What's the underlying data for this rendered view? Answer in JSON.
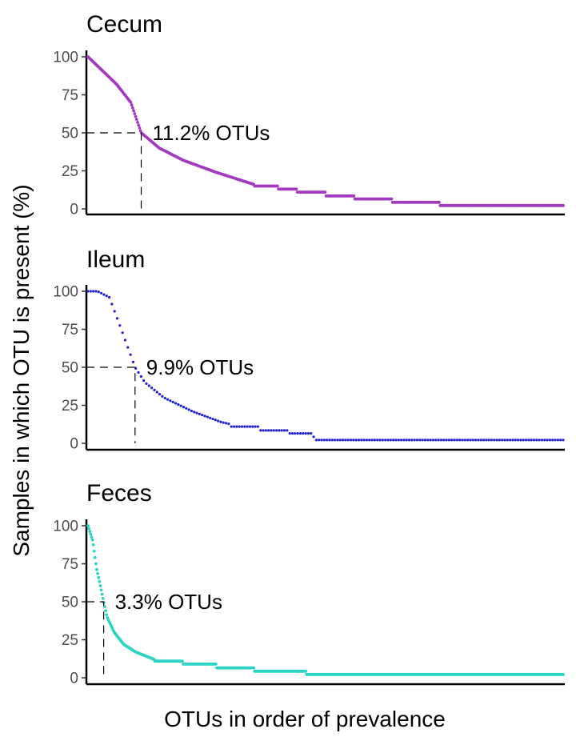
{
  "chart_data": {
    "type": "scatter",
    "ylabel": "Samples in which OTU is present (%)",
    "xlabel": "OTUs in order of prevalence",
    "ylim": [
      0,
      100
    ],
    "y_ticks": [
      0,
      25,
      50,
      75,
      100
    ],
    "panels": [
      {
        "name": "Cecum",
        "color": "#a23ac0",
        "annotation": "11.2% OTUs",
        "threshold": 50,
        "threshold_fraction": 0.112,
        "curve": [
          [
            0,
            100
          ],
          [
            0.03,
            91
          ],
          [
            0.06,
            82
          ],
          [
            0.09,
            70
          ],
          [
            0.112,
            50
          ],
          [
            0.15,
            40
          ],
          [
            0.2,
            32
          ],
          [
            0.27,
            24
          ],
          [
            0.35,
            16
          ],
          [
            0.42,
            11
          ],
          [
            0.5,
            7
          ],
          [
            0.62,
            4
          ],
          [
            0.8,
            2.2
          ],
          [
            1.0,
            2
          ]
        ],
        "levels": [
          [
            0.35,
            15
          ],
          [
            0.4,
            13
          ],
          [
            0.44,
            11
          ],
          [
            0.5,
            8.5
          ],
          [
            0.56,
            6.5
          ],
          [
            0.64,
            4.3
          ],
          [
            0.74,
            2.2
          ],
          [
            1.0,
            2.2
          ]
        ],
        "n_points": 480
      },
      {
        "name": "Ileum",
        "color": "#2222cc",
        "annotation": "9.9% OTUs",
        "threshold": 50,
        "threshold_fraction": 0.099,
        "curve": [
          [
            0,
            100
          ],
          [
            0.02,
            100
          ],
          [
            0.045,
            96
          ],
          [
            0.07,
            75
          ],
          [
            0.099,
            50
          ],
          [
            0.12,
            40
          ],
          [
            0.16,
            30
          ],
          [
            0.22,
            21
          ],
          [
            0.28,
            14
          ],
          [
            0.35,
            9
          ],
          [
            0.42,
            6.5
          ],
          [
            0.48,
            4.3
          ],
          [
            0.5,
            2.2
          ],
          [
            1.0,
            2.2
          ]
        ],
        "levels": [
          [
            0.3,
            11
          ],
          [
            0.36,
            8.5
          ],
          [
            0.42,
            6.5
          ],
          [
            0.47,
            4.3
          ],
          [
            0.48,
            2.2
          ],
          [
            1.0,
            2.2
          ]
        ],
        "n_points": 180
      },
      {
        "name": "Feces",
        "color": "#2dd4c4",
        "annotation": "3.3% OTUs",
        "threshold": 50,
        "threshold_fraction": 0.033,
        "curve": [
          [
            0,
            100
          ],
          [
            0.01,
            90
          ],
          [
            0.018,
            72
          ],
          [
            0.025,
            62
          ],
          [
            0.033,
            50
          ],
          [
            0.04,
            40
          ],
          [
            0.055,
            30
          ],
          [
            0.075,
            22
          ],
          [
            0.1,
            17
          ],
          [
            0.14,
            12
          ],
          [
            0.2,
            9
          ],
          [
            0.26,
            7
          ],
          [
            0.3,
            5
          ],
          [
            0.4,
            4.3
          ],
          [
            0.46,
            2.2
          ],
          [
            1.0,
            2.2
          ]
        ],
        "levels": [
          [
            0.14,
            11
          ],
          [
            0.2,
            9
          ],
          [
            0.27,
            6.5
          ],
          [
            0.35,
            4.3
          ],
          [
            0.46,
            2.2
          ],
          [
            1.0,
            2.2
          ]
        ],
        "n_points": 540
      }
    ]
  }
}
